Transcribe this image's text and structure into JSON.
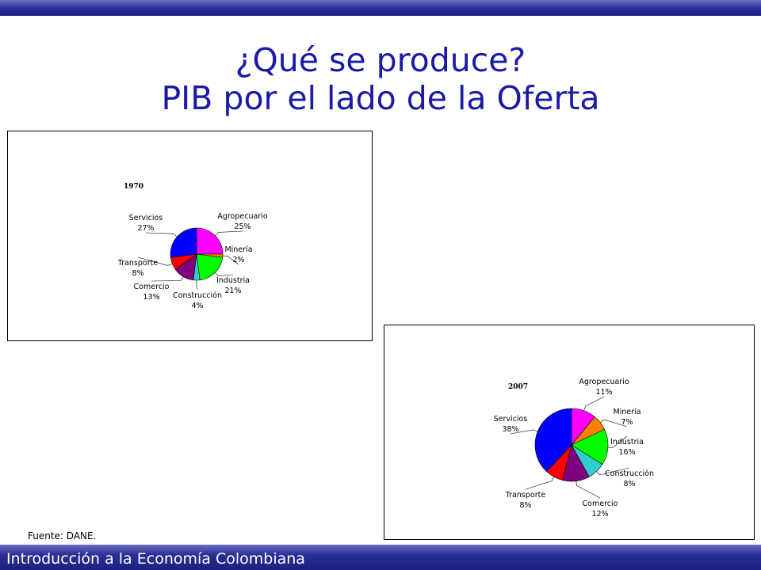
{
  "header": {
    "title_line1": "¿Qué se produce?",
    "title_line2": "PIB por el lado de la Oferta"
  },
  "source_note": "Fuente: DANE.",
  "footer": {
    "text": "Introducción a la Economía Colombiana"
  },
  "colors": {
    "bar_dark": "#1c2080",
    "title": "#1a1aa6",
    "Agropecuario": "#ff00ff",
    "Minería": "#ff8000",
    "Industria": "#00ff00",
    "Construcción": "#33cccc",
    "Comercio": "#800080",
    "Transporte": "#ff0000",
    "Servicios": "#0000ff"
  },
  "chart_data": [
    {
      "type": "pie",
      "title": "1970",
      "categories": [
        "Agropecuario",
        "Minería",
        "Industria",
        "Construcción",
        "Comercio",
        "Transporte",
        "Servicios"
      ],
      "values": [
        25,
        2,
        21,
        4,
        13,
        8,
        27
      ],
      "labels": [
        "25%",
        "2%",
        "21%",
        "4%",
        "13%",
        "8%",
        "27%"
      ]
    },
    {
      "type": "pie",
      "title": "2007",
      "categories": [
        "Agropecuario",
        "Minería",
        "Industria",
        "Construcción",
        "Comercio",
        "Transporte",
        "Servicios"
      ],
      "values": [
        11,
        7,
        16,
        8,
        12,
        8,
        38
      ],
      "labels": [
        "11%",
        "7%",
        "16%",
        "8%",
        "12%",
        "8%",
        "38%"
      ]
    }
  ]
}
